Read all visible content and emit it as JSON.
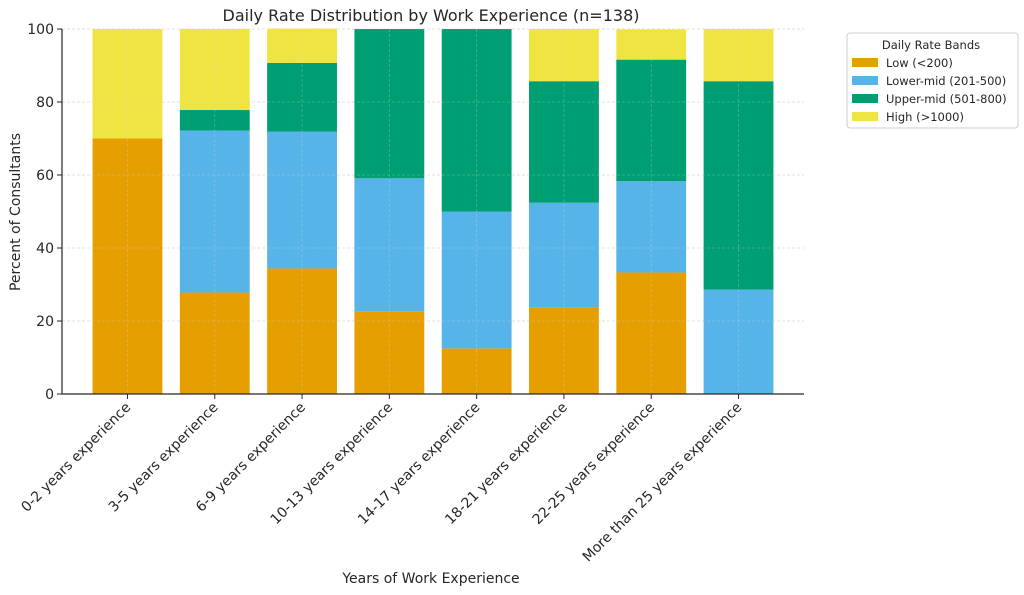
{
  "chart_data": {
    "type": "bar",
    "stacked": true,
    "title": "Daily Rate Distribution by Work Experience (n=138)",
    "xlabel": "Years of Work Experience",
    "ylabel": "Percent of Consultants",
    "ylim": [
      0,
      100
    ],
    "yticks": [
      0,
      20,
      40,
      60,
      80,
      100
    ],
    "grid": true,
    "legend": {
      "title": "Daily Rate Bands",
      "placement": "outside-top-right"
    },
    "categories": [
      "0-2 years experience",
      "3-5 years experience",
      "6-9 years experience",
      "10-13 years experience",
      "14-17 years experience",
      "18-21 years experience",
      "22-25 years experience",
      "More than 25 years experience"
    ],
    "series": [
      {
        "name": "Low (<200)",
        "color": "#E69F00",
        "values": [
          70.0,
          27.8,
          34.4,
          22.7,
          12.5,
          23.8,
          33.3,
          0.0
        ]
      },
      {
        "name": "Lower-mid (201-500)",
        "color": "#56B4E9",
        "values": [
          0.0,
          44.4,
          37.5,
          36.4,
          37.5,
          28.6,
          25.0,
          28.6
        ]
      },
      {
        "name": "Upper-mid (501-800)",
        "color": "#009E73",
        "values": [
          0.0,
          5.6,
          18.8,
          40.9,
          50.0,
          33.3,
          33.3,
          57.1
        ]
      },
      {
        "name": "High (>1000)",
        "color": "#F0E442",
        "values": [
          30.0,
          22.2,
          9.4,
          0.0,
          0.0,
          14.3,
          8.3,
          14.3
        ]
      }
    ]
  }
}
